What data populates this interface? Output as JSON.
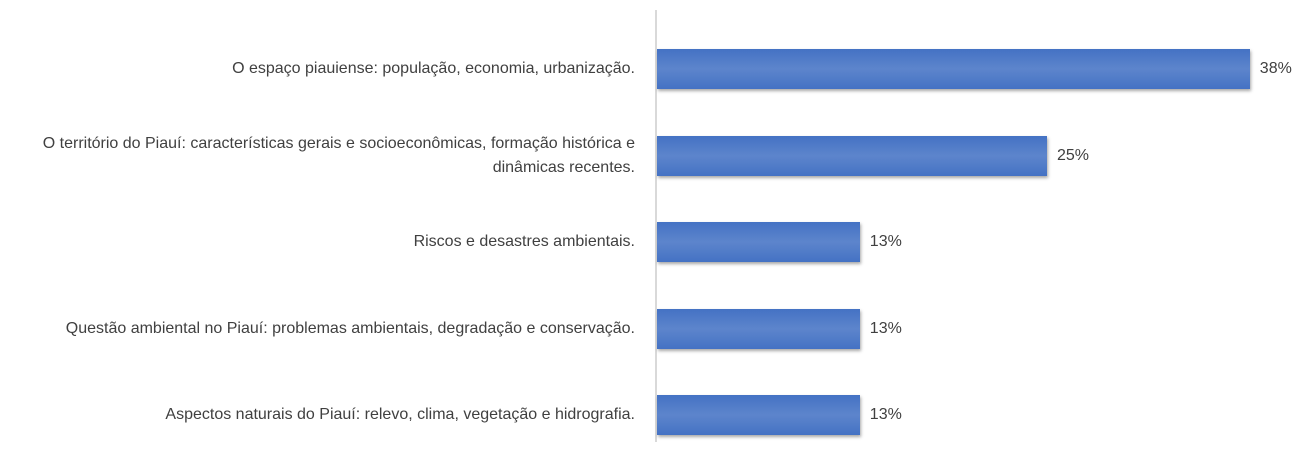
{
  "chart_data": {
    "type": "bar",
    "orientation": "horizontal",
    "categories": [
      "O espaço piauiense: população, economia, urbanização.",
      "O território do Piauí: características gerais e socioeconômicas, formação histórica e dinâmicas recentes.",
      "Riscos e desastres ambientais.",
      "Questão ambiental no Piauí: problemas ambientais, degradação e conservação.",
      "Aspectos naturais do Piauí: relevo, clima, vegetação e hidrografia."
    ],
    "values": [
      38,
      25,
      13,
      13,
      13
    ],
    "value_labels": [
      "38%",
      "25%",
      "13%",
      "13%",
      "13%"
    ],
    "color": "#4472c4"
  }
}
